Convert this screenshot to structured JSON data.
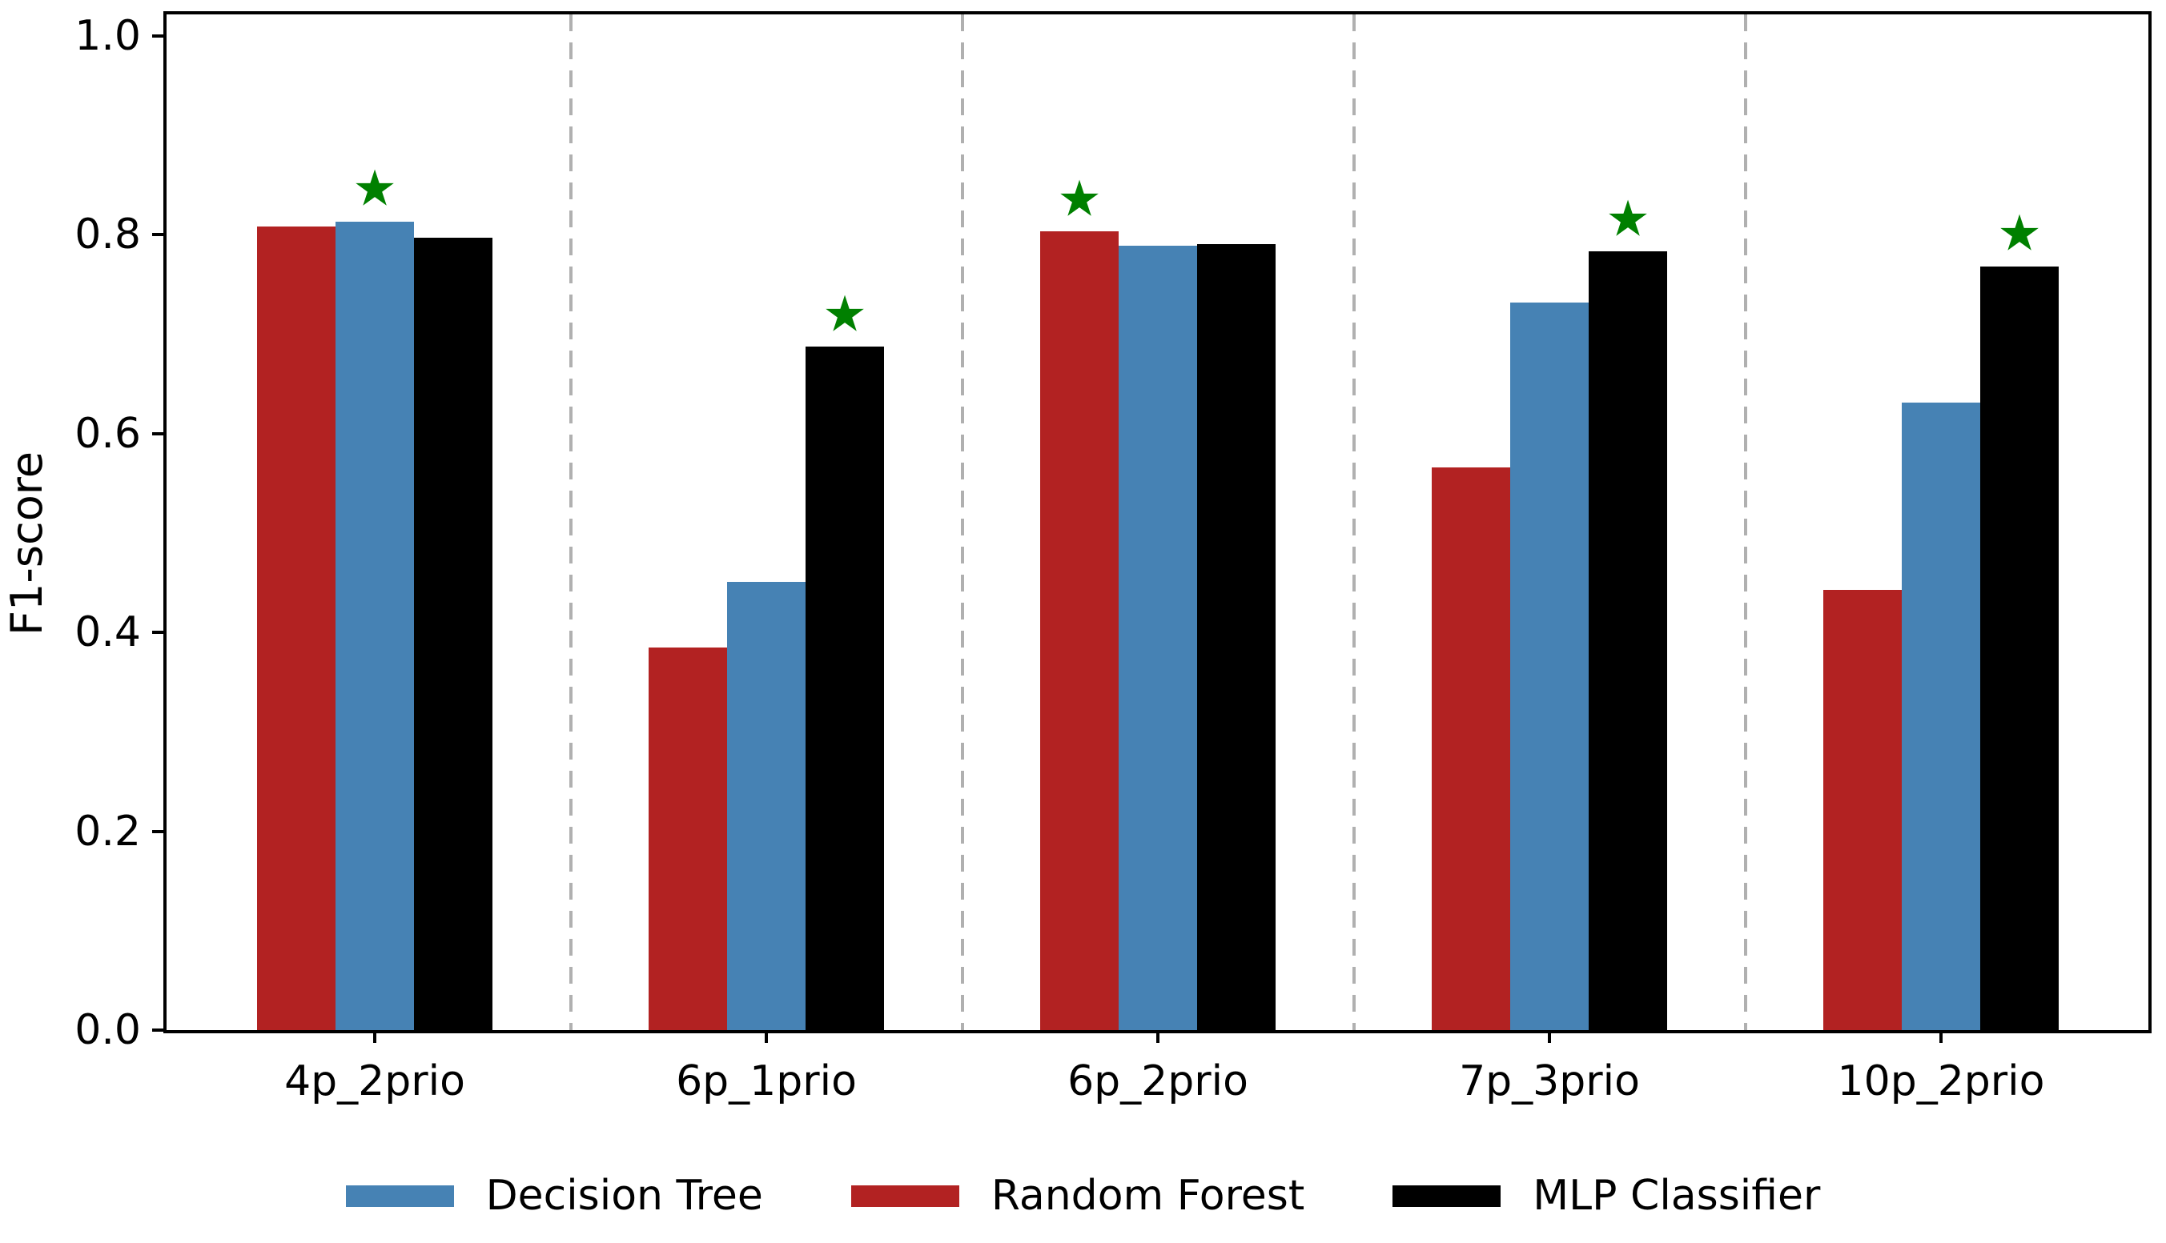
{
  "chart_data": {
    "type": "bar",
    "title": "",
    "xlabel": "",
    "ylabel": "F1-score",
    "ylim": [
      0.0,
      1.021
    ],
    "yticks": [
      0.0,
      0.2,
      0.4,
      0.6,
      0.8,
      1.0
    ],
    "ytick_labels": [
      "0.0",
      "0.2",
      "0.4",
      "0.6",
      "0.8",
      "1.0"
    ],
    "categories": [
      "4p_2prio",
      "6p_1prio",
      "6p_2prio",
      "7p_3prio",
      "10p_2prio"
    ],
    "series": [
      {
        "name": "Decision Tree",
        "color": "#4682B4",
        "values": [
          0.813,
          0.451,
          0.789,
          0.732,
          0.631
        ]
      },
      {
        "name": "Random Forest",
        "color": "#B22222",
        "values": [
          0.808,
          0.385,
          0.803,
          0.566,
          0.443
        ]
      },
      {
        "name": "MLP Classifier",
        "color": "#000000",
        "values": [
          0.797,
          0.687,
          0.79,
          0.783,
          0.768
        ]
      }
    ],
    "bar_draw_order": [
      "Random Forest",
      "Decision Tree",
      "MLP Classifier"
    ],
    "best_markers": {
      "symbol": "★",
      "color": "#008000",
      "offset_above_bar": 0.031,
      "items": [
        {
          "category": "4p_2prio",
          "series": "Decision Tree"
        },
        {
          "category": "6p_1prio",
          "series": "MLP Classifier"
        },
        {
          "category": "6p_2prio",
          "series": "Random Forest"
        },
        {
          "category": "7p_3prio",
          "series": "MLP Classifier"
        },
        {
          "category": "10p_2prio",
          "series": "MLP Classifier"
        }
      ]
    },
    "separators": {
      "positions_between_groups": [
        0.5,
        1.5,
        2.5,
        3.5
      ],
      "style": "dashed",
      "color": "#b0b0b0"
    },
    "legend": {
      "position": "bottom-center",
      "entries": [
        {
          "label": "Decision Tree",
          "color": "#4682B4"
        },
        {
          "label": "Random Forest",
          "color": "#B22222"
        },
        {
          "label": "MLP Classifier",
          "color": "#000000"
        }
      ]
    },
    "grid": "off"
  }
}
